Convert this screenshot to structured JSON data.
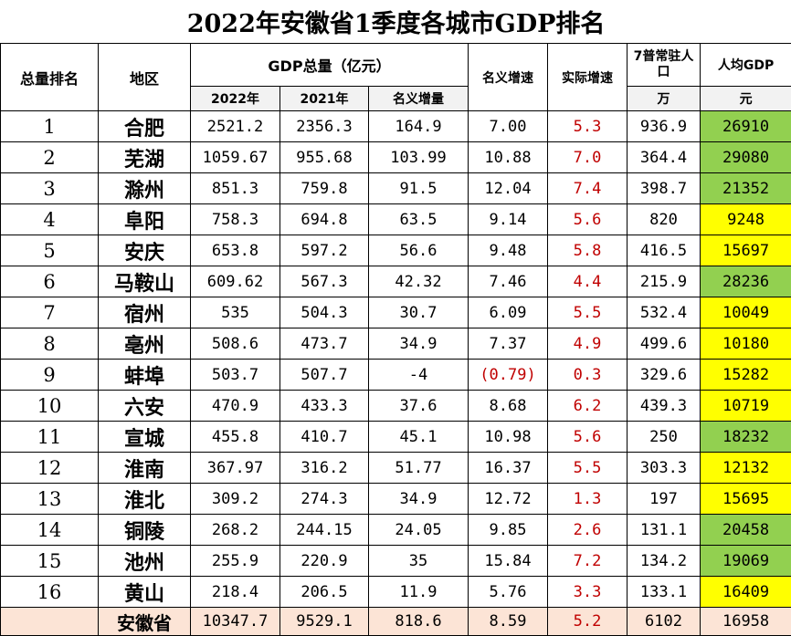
{
  "title": "2022年安徽省1季度各城市GDP排名",
  "headers": {
    "rank": "总量排名",
    "region": "地区",
    "gdp_total": "GDP总量（亿元）",
    "y2022": "2022年",
    "y2021": "2021年",
    "nominal_increase": "名义增量",
    "nominal_growth": "名义增速",
    "real_growth": "实际增速",
    "population": "7普常驻人口",
    "population_unit": "万",
    "per_capita": "人均GDP",
    "per_capita_unit": "元"
  },
  "rows": [
    {
      "rank": "1",
      "city": "合肥",
      "g2022": "2521.2",
      "g2021": "2356.3",
      "inc": "164.9",
      "nom": "7.00",
      "real": "5.3",
      "pop": "936.9",
      "pc": "26910",
      "pc_color": "#92d050"
    },
    {
      "rank": "2",
      "city": "芜湖",
      "g2022": "1059.67",
      "g2021": "955.68",
      "inc": "103.99",
      "nom": "10.88",
      "real": "7.0",
      "pop": "364.4",
      "pc": "29080",
      "pc_color": "#92d050"
    },
    {
      "rank": "3",
      "city": "滁州",
      "g2022": "851.3",
      "g2021": "759.8",
      "inc": "91.5",
      "nom": "12.04",
      "real": "7.4",
      "pop": "398.7",
      "pc": "21352",
      "pc_color": "#92d050"
    },
    {
      "rank": "4",
      "city": "阜阳",
      "g2022": "758.3",
      "g2021": "694.8",
      "inc": "63.5",
      "nom": "9.14",
      "real": "5.6",
      "pop": "820",
      "pc": "9248",
      "pc_color": "#ffff00"
    },
    {
      "rank": "5",
      "city": "安庆",
      "g2022": "653.8",
      "g2021": "597.2",
      "inc": "56.6",
      "nom": "9.48",
      "real": "5.8",
      "pop": "416.5",
      "pc": "15697",
      "pc_color": "#ffff00"
    },
    {
      "rank": "6",
      "city": "马鞍山",
      "g2022": "609.62",
      "g2021": "567.3",
      "inc": "42.32",
      "nom": "7.46",
      "real": "4.4",
      "pop": "215.9",
      "pc": "28236",
      "pc_color": "#92d050"
    },
    {
      "rank": "7",
      "city": "宿州",
      "g2022": "535",
      "g2021": "504.3",
      "inc": "30.7",
      "nom": "6.09",
      "real": "5.5",
      "pop": "532.4",
      "pc": "10049",
      "pc_color": "#ffff00"
    },
    {
      "rank": "8",
      "city": "亳州",
      "g2022": "508.6",
      "g2021": "473.7",
      "inc": "34.9",
      "nom": "7.37",
      "real": "4.9",
      "pop": "499.6",
      "pc": "10180",
      "pc_color": "#ffff00"
    },
    {
      "rank": "9",
      "city": "蚌埠",
      "g2022": "503.7",
      "g2021": "507.7",
      "inc": "-4",
      "nom": "(0.79)",
      "nom_red": true,
      "real": "0.3",
      "pop": "329.6",
      "pc": "15282",
      "pc_color": "#ffff00"
    },
    {
      "rank": "10",
      "city": "六安",
      "g2022": "470.9",
      "g2021": "433.3",
      "inc": "37.6",
      "nom": "8.68",
      "real": "6.2",
      "pop": "439.3",
      "pc": "10719",
      "pc_color": "#ffff00"
    },
    {
      "rank": "11",
      "city": "宣城",
      "g2022": "455.8",
      "g2021": "410.7",
      "inc": "45.1",
      "nom": "10.98",
      "real": "5.6",
      "pop": "250",
      "pc": "18232",
      "pc_color": "#92d050"
    },
    {
      "rank": "12",
      "city": "淮南",
      "g2022": "367.97",
      "g2021": "316.2",
      "inc": "51.77",
      "nom": "16.37",
      "real": "5.5",
      "pop": "303.3",
      "pc": "12132",
      "pc_color": "#ffff00"
    },
    {
      "rank": "13",
      "city": "淮北",
      "g2022": "309.2",
      "g2021": "274.3",
      "inc": "34.9",
      "nom": "12.72",
      "real": "1.3",
      "pop": "197",
      "pc": "15695",
      "pc_color": "#ffff00"
    },
    {
      "rank": "14",
      "city": "铜陵",
      "g2022": "268.2",
      "g2021": "244.15",
      "inc": "24.05",
      "nom": "9.85",
      "real": "2.6",
      "pop": "131.1",
      "pc": "20458",
      "pc_color": "#92d050"
    },
    {
      "rank": "15",
      "city": "池州",
      "g2022": "255.9",
      "g2021": "220.9",
      "inc": "35",
      "nom": "15.84",
      "real": "7.2",
      "pop": "134.2",
      "pc": "19069",
      "pc_color": "#92d050"
    },
    {
      "rank": "16",
      "city": "黄山",
      "g2022": "218.4",
      "g2021": "206.5",
      "inc": "11.9",
      "nom": "5.76",
      "real": "3.3",
      "pop": "133.1",
      "pc": "16409",
      "pc_color": "#ffff00"
    }
  ],
  "total": {
    "rank": "",
    "city": "安徽省",
    "g2022": "10347.7",
    "g2021": "9529.1",
    "inc": "818.6",
    "nom": "8.59",
    "real": "5.2",
    "pop": "6102",
    "pc": "16958"
  }
}
